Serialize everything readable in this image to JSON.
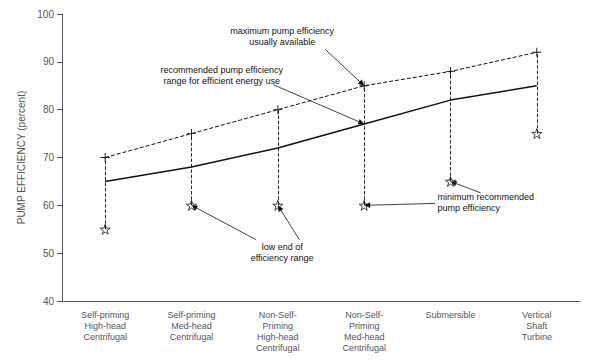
{
  "chart_data": {
    "type": "line",
    "categories": [
      "Self-priming\nHigh-head\nCentrifugal",
      "Self-priming\nMed-head\nCentrifugal",
      "Non-Self-\nPriming\nHigh-head\nCentrifugal",
      "Non-Self-\nPriming\nMed-head\nCentrifugal",
      "Submersible",
      "Vertical\nShaft\nTurbine"
    ],
    "series": [
      {
        "values": [
          70,
          75,
          80,
          85,
          88,
          92
        ],
        "color": "#111111",
        "line_style": "dashed",
        "marker": "plus"
      },
      {
        "values": [
          65,
          68,
          72,
          77,
          82,
          85
        ],
        "color": "#111111",
        "line_style": "solid"
      },
      {
        "values": [
          55,
          60,
          60,
          60,
          65,
          75
        ],
        "color": "#111111",
        "type": "scatter",
        "marker": "star"
      }
    ],
    "ylabel": "PUMP EFFICIENCY (percent)",
    "ylim": [
      40,
      100
    ],
    "yticks": [
      40,
      50,
      60,
      70,
      80,
      90,
      100
    ],
    "grid": false,
    "annotations": [
      {
        "text": "maximum pump efficiency\nusually available"
      },
      {
        "text": "recommended pump efficiency\nrange for efficient energy use"
      },
      {
        "text": "low end of\nefficiency range"
      },
      {
        "text": "minimum recommended\npump efficiency"
      }
    ]
  }
}
